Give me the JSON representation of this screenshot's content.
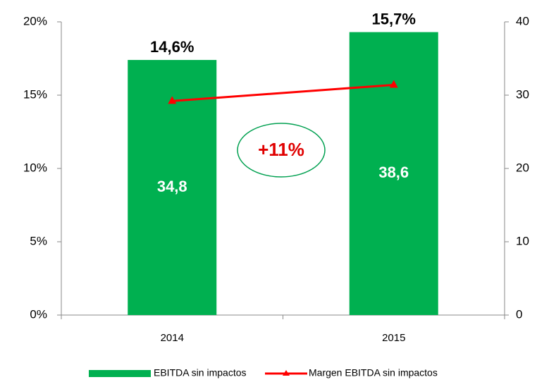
{
  "chart_data": {
    "type": "bar-line",
    "categories": [
      "2014",
      "2015"
    ],
    "series": [
      {
        "name": "EBITDA sin impactos",
        "type": "bar",
        "axis": "y2",
        "color": "#00b050",
        "values": [
          34.8,
          38.6
        ],
        "value_labels": [
          "34,8",
          "38,6"
        ]
      },
      {
        "name": "Margen EBITDA sin impactos",
        "type": "line",
        "axis": "y",
        "color": "#ff0000",
        "values": [
          14.6,
          15.7
        ],
        "value_labels": [
          "14,6%",
          "15,7%"
        ]
      }
    ],
    "ylim": [
      0,
      20
    ],
    "yticks": [
      {
        "value": 0,
        "label": "0%"
      },
      {
        "value": 5,
        "label": "5%"
      },
      {
        "value": 10,
        "label": "10%"
      },
      {
        "value": 15,
        "label": "15%"
      },
      {
        "value": 20,
        "label": "20%"
      }
    ],
    "y2lim": [
      0,
      40
    ],
    "y2ticks": [
      0,
      10,
      20,
      30,
      40
    ],
    "annotation": "+11%",
    "legend": "bottom"
  }
}
